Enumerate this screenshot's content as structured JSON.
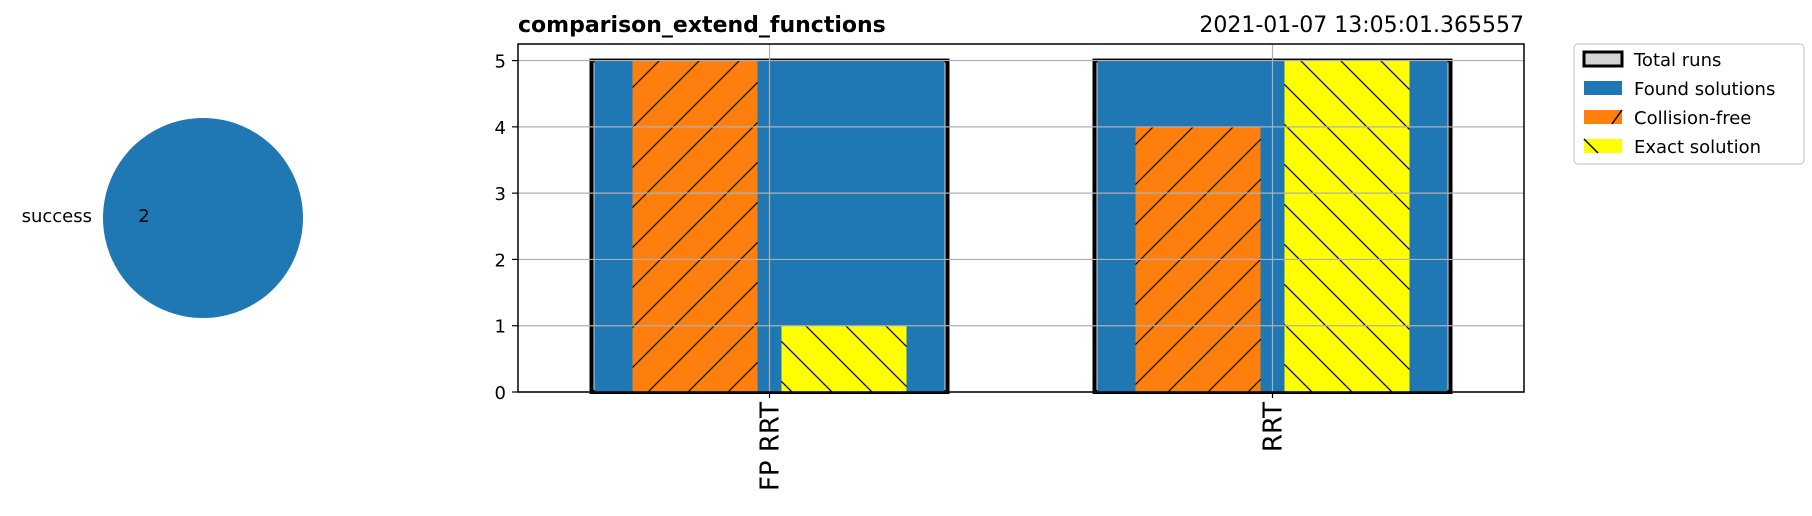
{
  "chart_data": [
    {
      "type": "pie",
      "slices": [
        {
          "label": "success",
          "value": 2,
          "value_label": "2",
          "color": "#1f77b4"
        }
      ]
    },
    {
      "type": "bar",
      "title": "comparison_extend_functions",
      "subtitle": "2021-01-07 13:05:01.365557",
      "categories": [
        "FP RRT",
        "RRT"
      ],
      "ylim": [
        0,
        5.25
      ],
      "yticks": [
        0,
        1,
        2,
        3,
        4,
        5
      ],
      "grid": true,
      "legend_position": "outside-top-right",
      "series": [
        {
          "name": "Total runs",
          "values": [
            5,
            5
          ],
          "color": "#d3d3d3",
          "style": "outline-background"
        },
        {
          "name": "Found solutions",
          "values": [
            5,
            5
          ],
          "color": "#1f77b4",
          "style": "solid"
        },
        {
          "name": "Collision-free",
          "values": [
            5,
            4
          ],
          "color": "#ff7f0e",
          "style": "hatch-forward"
        },
        {
          "name": "Exact solution",
          "values": [
            1,
            5
          ],
          "color": "#ffff00",
          "style": "hatch-back"
        }
      ]
    }
  ]
}
